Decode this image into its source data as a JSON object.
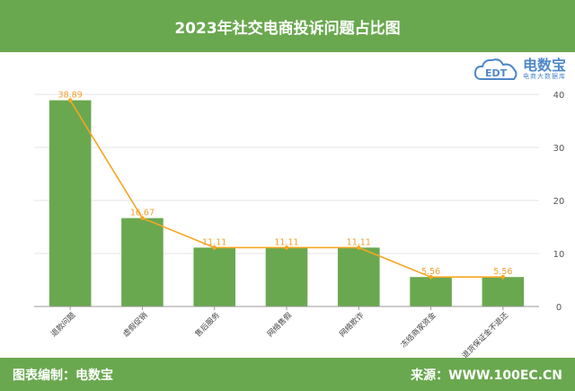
{
  "header": {
    "title": "2023年社交电商投诉问题占比图"
  },
  "logo": {
    "text": "电数宝",
    "tagline": "电商大数据库",
    "badge": "EDT"
  },
  "footer": {
    "left": "图表编制：电数宝",
    "right": "来源：WWW.100EC.CN"
  },
  "colors": {
    "bar": "#6aa84f",
    "line": "#f5a623",
    "header": "#6aa84f"
  },
  "chart_data": {
    "type": "bar",
    "categories": [
      "退款问题",
      "虚假促销",
      "售后服务",
      "网络售假",
      "网络欺诈",
      "冻结商家资金",
      "退货保证金不退还"
    ],
    "series": [
      {
        "type": "bar",
        "values": [
          38.89,
          16.67,
          11.11,
          11.11,
          11.11,
          5.56,
          5.56
        ]
      },
      {
        "type": "line",
        "values": [
          38.89,
          16.67,
          11.11,
          11.11,
          11.11,
          5.56,
          5.56
        ]
      }
    ],
    "data_labels": [
      "38.89",
      "16.67",
      "11.11",
      "11.11",
      "11.11",
      "5.56",
      "5.56"
    ],
    "y_axis": {
      "position": "right",
      "ylim": [
        0,
        40
      ],
      "ticks": [
        0,
        10,
        20,
        30,
        40
      ]
    },
    "grid": true
  }
}
